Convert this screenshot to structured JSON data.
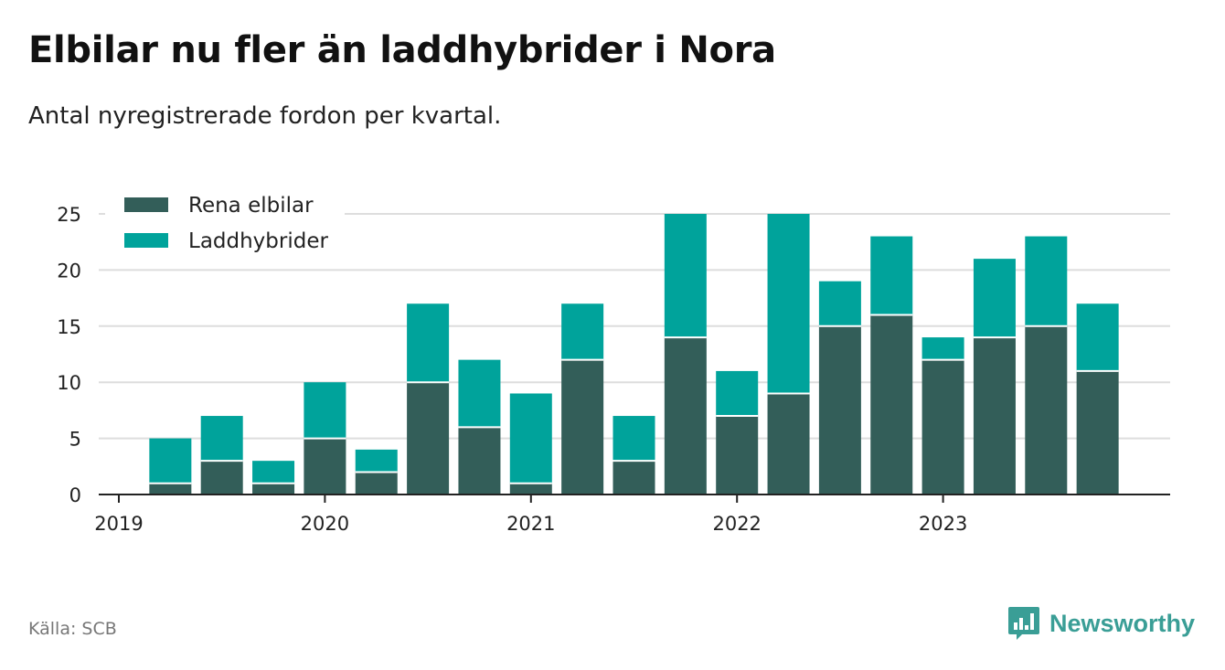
{
  "header": {
    "title": "Elbilar nu fler än laddhybrider i Nora",
    "subtitle": "Antal nyregistrerade fordon per kvartal."
  },
  "footer": {
    "source": "Källa: SCB",
    "brand": "Newsworthy"
  },
  "colors": {
    "elbilar": "#335e59",
    "laddhybrider": "#00a39b",
    "grid": "#dddddd",
    "axis": "#222222",
    "brand": "#3a9e96"
  },
  "chart_data": {
    "type": "bar",
    "stacked": true,
    "categories": [
      "2019 Q1",
      "2019 Q2",
      "2019 Q3",
      "2019 Q4",
      "2020 Q1",
      "2020 Q2",
      "2020 Q3",
      "2020 Q4",
      "2021 Q1",
      "2021 Q2",
      "2021 Q3",
      "2021 Q4",
      "2022 Q1",
      "2022 Q2",
      "2022 Q3",
      "2022 Q4",
      "2023 Q1",
      "2023 Q2",
      "2023 Q3",
      "2023 Q4"
    ],
    "series": [
      {
        "name": "Rena elbilar",
        "color": "#335e59",
        "values": [
          0,
          1,
          3,
          1,
          5,
          2,
          10,
          6,
          1,
          12,
          3,
          14,
          7,
          9,
          15,
          16,
          12,
          14,
          15,
          11
        ]
      },
      {
        "name": "Laddhybrider",
        "color": "#00a39b",
        "values": [
          0,
          4,
          4,
          2,
          5,
          2,
          7,
          6,
          8,
          5,
          4,
          11,
          4,
          16,
          4,
          7,
          2,
          7,
          8,
          6
        ]
      }
    ],
    "xticks": [
      "2019",
      "2020",
      "2021",
      "2022",
      "2023"
    ],
    "yticks": [
      0,
      5,
      10,
      15,
      20,
      25
    ],
    "ylim": [
      0,
      25
    ],
    "grid": true,
    "legend": "top-left"
  }
}
